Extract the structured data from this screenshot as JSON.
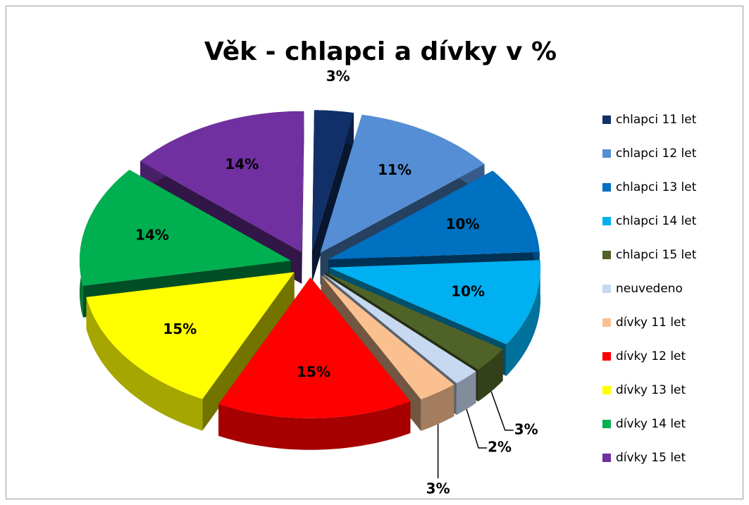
{
  "chart_data": {
    "type": "pie",
    "title": "Věk - chlapci a dívky v %",
    "categories": [
      "chlapci 11 let",
      "chlapci 12 let",
      "chlapci 13 let",
      "chlapci 14 let",
      "chlapci 15 let",
      "neuvedeno",
      "dívky 11 let",
      "dívky 12 let",
      "dívky 13 let",
      "dívky 14 let",
      "dívky 15 let"
    ],
    "values": [
      3,
      11,
      10,
      10,
      3,
      2,
      3,
      15,
      15,
      14,
      14
    ],
    "value_labels": [
      "3%",
      "11%",
      "10%",
      "10%",
      "3%",
      "2%",
      "3%",
      "15%",
      "15%",
      "14%",
      "14%"
    ],
    "colors": [
      "#11306a",
      "#558ed5",
      "#0070c0",
      "#00b0f0",
      "#4f6228",
      "#c6d9f1",
      "#fac090",
      "#ff0000",
      "#ffff00",
      "#00b050",
      "#7030a0"
    ],
    "legend": "right"
  }
}
